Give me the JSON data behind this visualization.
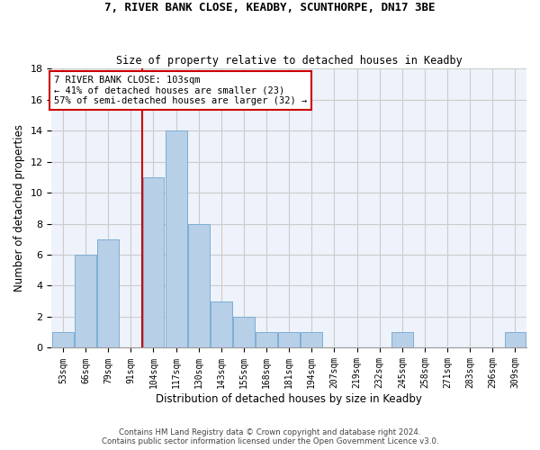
{
  "title1": "7, RIVER BANK CLOSE, KEADBY, SCUNTHORPE, DN17 3BE",
  "title2": "Size of property relative to detached houses in Keadby",
  "xlabel": "Distribution of detached houses by size in Keadby",
  "ylabel": "Number of detached properties",
  "categories": [
    "53sqm",
    "66sqm",
    "79sqm",
    "91sqm",
    "104sqm",
    "117sqm",
    "130sqm",
    "143sqm",
    "155sqm",
    "168sqm",
    "181sqm",
    "194sqm",
    "207sqm",
    "219sqm",
    "232sqm",
    "245sqm",
    "258sqm",
    "271sqm",
    "283sqm",
    "296sqm",
    "309sqm"
  ],
  "values": [
    1,
    6,
    7,
    0,
    11,
    14,
    8,
    3,
    2,
    1,
    1,
    1,
    0,
    0,
    0,
    1,
    0,
    0,
    0,
    0,
    1
  ],
  "bar_color": "#b8cfe8",
  "bar_edgecolor": "#7aafd4",
  "vline_x": 3.5,
  "vline_color": "#cc0000",
  "annotation_lines": [
    "7 RIVER BANK CLOSE: 103sqm",
    "← 41% of detached houses are smaller (23)",
    "57% of semi-detached houses are larger (32) →"
  ],
  "annotation_box_color": "#cc0000",
  "ylim": [
    0,
    18
  ],
  "yticks": [
    0,
    2,
    4,
    6,
    8,
    10,
    12,
    14,
    16,
    18
  ],
  "grid_color": "#cccccc",
  "bg_color": "#eef2fa",
  "footnote1": "Contains HM Land Registry data © Crown copyright and database right 2024.",
  "footnote2": "Contains public sector information licensed under the Open Government Licence v3.0."
}
